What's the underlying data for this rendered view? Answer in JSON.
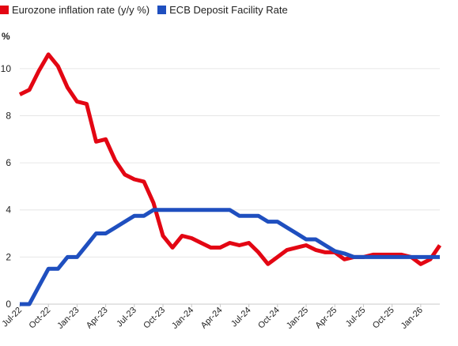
{
  "legend": {
    "inflation_label": "Eurozone inflation rate (y/y %)",
    "ecb_label": "ECB Deposit Facility Rate"
  },
  "unit_label": "%",
  "colors": {
    "inflation": "#e30613",
    "ecb": "#1f4fbf",
    "grid": "#e6e6e6",
    "axis": "#c8c8c8"
  },
  "chart_data": {
    "type": "line",
    "title": "",
    "xlabel": "",
    "ylabel": "%",
    "ylim": [
      0,
      11
    ],
    "yticks": [
      0,
      2,
      4,
      6,
      8,
      10
    ],
    "grid": "horizontal",
    "legend_position": "top-left",
    "x": [
      "2022-07",
      "2022-08",
      "2022-09",
      "2022-10",
      "2022-11",
      "2022-12",
      "2023-01",
      "2023-02",
      "2023-03",
      "2023-04",
      "2023-05",
      "2023-06",
      "2023-07",
      "2023-08",
      "2023-09",
      "2023-10",
      "2023-11",
      "2023-12",
      "2024-01",
      "2024-02",
      "2024-03",
      "2024-04",
      "2024-05",
      "2024-06",
      "2024-07",
      "2024-08",
      "2024-09",
      "2024-10",
      "2024-11",
      "2024-12",
      "2025-01",
      "2025-02",
      "2025-03",
      "2025-04",
      "2025-05",
      "2025-06",
      "2025-07",
      "2025-08",
      "2025-09",
      "2025-10",
      "2025-11",
      "2025-12",
      "2026-01",
      "2026-02",
      "2026-03"
    ],
    "xtick_labels": [
      {
        "x": "2022-07",
        "label": "Jul-22"
      },
      {
        "x": "2022-10",
        "label": "Oct-22"
      },
      {
        "x": "2023-01",
        "label": "Jan-23"
      },
      {
        "x": "2023-04",
        "label": "Apr-23"
      },
      {
        "x": "2023-07",
        "label": "Jul-23"
      },
      {
        "x": "2023-10",
        "label": "Oct-23"
      },
      {
        "x": "2024-01",
        "label": "Jan-24"
      },
      {
        "x": "2024-04",
        "label": "Apr-24"
      },
      {
        "x": "2024-07",
        "label": "Jul-24"
      },
      {
        "x": "2024-10",
        "label": "Oct-24"
      },
      {
        "x": "2025-01",
        "label": "Jan-25"
      },
      {
        "x": "2025-04",
        "label": "Apr-25"
      },
      {
        "x": "2025-07",
        "label": "Jul-25"
      },
      {
        "x": "2025-10",
        "label": "Oct-25"
      },
      {
        "x": "2026-01",
        "label": "Jan-26"
      }
    ],
    "series": [
      {
        "name": "Eurozone inflation rate (y/y %)",
        "color": "#e30613",
        "values": [
          8.9,
          9.1,
          9.9,
          10.6,
          10.1,
          9.2,
          8.6,
          8.5,
          6.9,
          7.0,
          6.1,
          5.5,
          5.3,
          5.2,
          4.3,
          2.9,
          2.4,
          2.9,
          2.8,
          2.6,
          2.4,
          2.4,
          2.6,
          2.5,
          2.6,
          2.2,
          1.7,
          2.0,
          2.3,
          2.4,
          2.5,
          2.3,
          2.2,
          2.2,
          1.9,
          2.0,
          2.0,
          2.1,
          2.1,
          2.1,
          2.1,
          2.0,
          1.7,
          1.9,
          2.5
        ]
      },
      {
        "name": "ECB Deposit Facility Rate",
        "color": "#1f4fbf",
        "values": [
          0.0,
          0.0,
          0.75,
          1.5,
          1.5,
          2.0,
          2.0,
          2.5,
          3.0,
          3.0,
          3.25,
          3.5,
          3.75,
          3.75,
          4.0,
          4.0,
          4.0,
          4.0,
          4.0,
          4.0,
          4.0,
          4.0,
          4.0,
          3.75,
          3.75,
          3.75,
          3.5,
          3.5,
          3.25,
          3.0,
          2.75,
          2.75,
          2.5,
          2.25,
          2.15,
          2.0,
          2.0,
          2.0,
          2.0,
          2.0,
          2.0,
          2.0,
          2.0,
          2.0,
          2.0
        ]
      }
    ]
  }
}
